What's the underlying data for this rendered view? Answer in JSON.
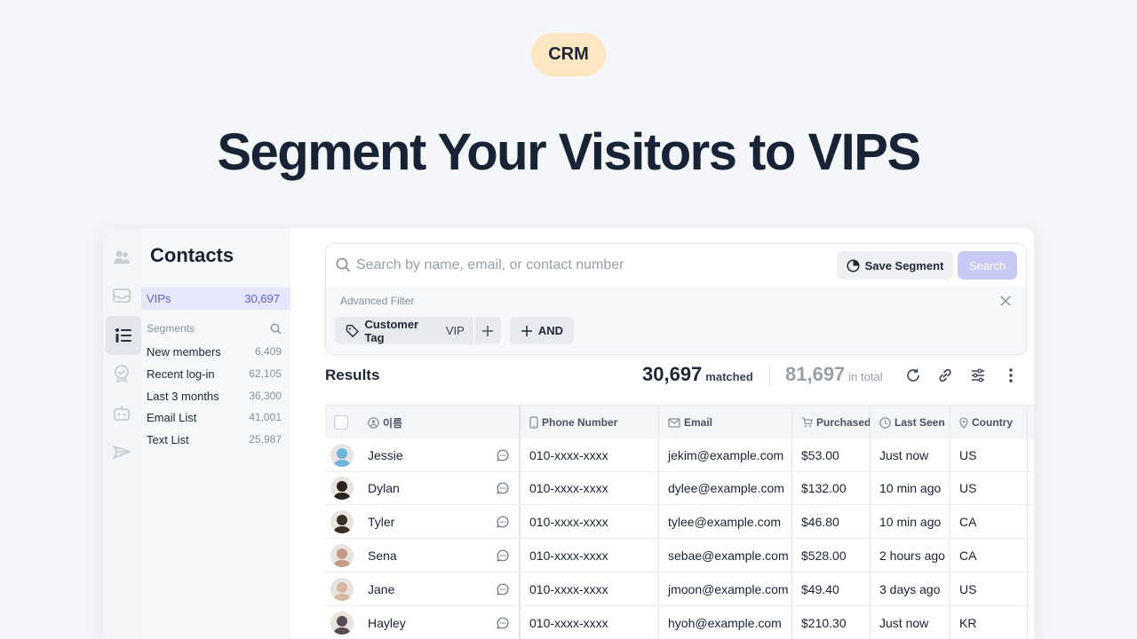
{
  "badge": "CRM",
  "headline": "Segment Your Visitors to VIPS",
  "sidebar": {
    "title": "Contacts",
    "active_item": {
      "label": "VIPs",
      "count": "30,697"
    },
    "segments_label": "Segments",
    "items": [
      {
        "label": "New members",
        "count": "6,409"
      },
      {
        "label": "Recent log-in",
        "count": "62,105"
      },
      {
        "label": "Last 3 months",
        "count": "36,300"
      },
      {
        "label": "Email List",
        "count": "41,001"
      },
      {
        "label": "Text List",
        "count": "25,987"
      }
    ]
  },
  "search": {
    "placeholder": "Search by name, email, or contact number",
    "save_segment": "Save Segment",
    "search_button": "Search",
    "advanced_filter": "Advanced Filter",
    "chip_label": "Customer Tag",
    "chip_value": "VIP",
    "and_label": "AND"
  },
  "results": {
    "label": "Results",
    "matched_count": "30,697",
    "matched_text": "matched",
    "total_count": "81,697",
    "total_text": "in total"
  },
  "table": {
    "columns": [
      "이름",
      "Phone Number",
      "Email",
      "Purchased",
      "Last Seen",
      "Country"
    ],
    "rows": [
      {
        "name": "Jessie",
        "phone": "010-xxxx-xxxx",
        "email": "jekim@example.com",
        "purchased": "$53.00",
        "last_seen": "Just now",
        "country": "US",
        "avatar_color": "#6fb4d9"
      },
      {
        "name": "Dylan",
        "phone": "010-xxxx-xxxx",
        "email": "dylee@example.com",
        "purchased": "$132.00",
        "last_seen": "10 min ago",
        "country": "US",
        "avatar_color": "#2a2320"
      },
      {
        "name": "Tyler",
        "phone": "010-xxxx-xxxx",
        "email": "tylee@example.com",
        "purchased": "$46.80",
        "last_seen": "10 min ago",
        "country": "CA",
        "avatar_color": "#3b2e22"
      },
      {
        "name": "Sena",
        "phone": "010-xxxx-xxxx",
        "email": "sebae@example.com",
        "purchased": "$528.00",
        "last_seen": "2 hours ago",
        "country": "CA",
        "avatar_color": "#c49a86"
      },
      {
        "name": "Jane",
        "phone": "010-xxxx-xxxx",
        "email": "jmoon@example.com",
        "purchased": "$49.40",
        "last_seen": "3 days ago",
        "country": "US",
        "avatar_color": "#d8b7a2"
      },
      {
        "name": "Hayley",
        "phone": "010-xxxx-xxxx",
        "email": "hyoh@example.com",
        "purchased": "$210.30",
        "last_seen": "Just now",
        "country": "KR",
        "avatar_color": "#5a4a52"
      }
    ]
  },
  "colors": {
    "accent": "#5b5fd6",
    "badge_bg": "#fde6c2",
    "search_btn": "#c8c9f5"
  }
}
